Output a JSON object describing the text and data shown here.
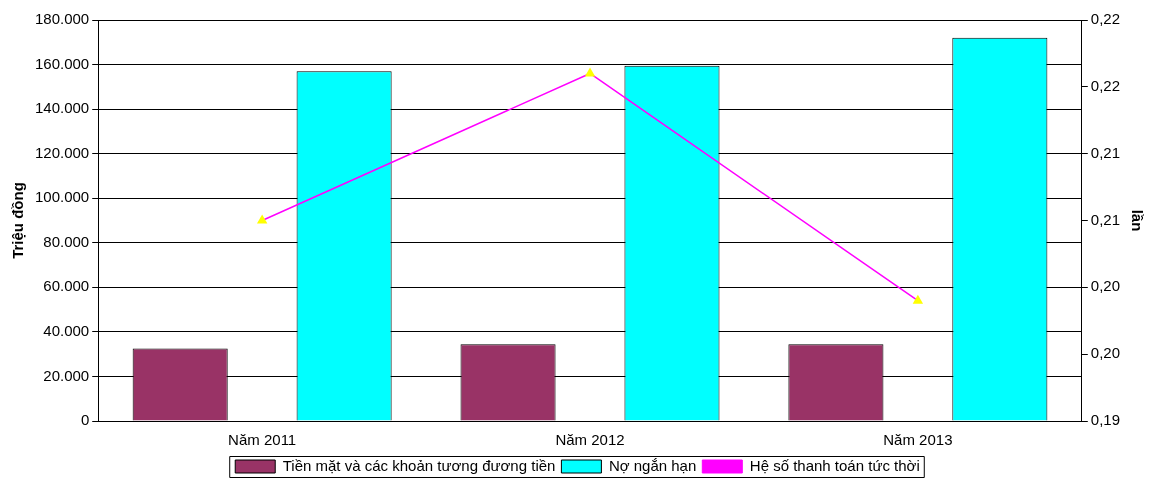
{
  "chart_data": {
    "type": "bar",
    "categories": [
      "Năm 2011",
      "Năm 2012",
      "Năm 2013"
    ],
    "ylabel": "Triệu đồng",
    "y2label": "lần",
    "series": [
      {
        "name": "Tiền mặt và các khoản tương đương tiền",
        "color": "#993366",
        "values": [
          32500,
          34500,
          34500
        ]
      },
      {
        "name": "Nợ ngắn hạn",
        "color": "#00ffff",
        "values": [
          157000,
          159500,
          172000
        ]
      },
      {
        "name": "Hệ số thanh toán tức thời",
        "type": "line",
        "axis": "y2",
        "color": "#ff00ff",
        "marker": "triangle",
        "values": [
          0.205,
          0.216,
          0.199
        ]
      }
    ],
    "ylim": [
      0,
      180000
    ],
    "yticks": [
      {
        "value": 0,
        "label": "0"
      },
      {
        "value": 20000,
        "label": "20.000"
      },
      {
        "value": 40000,
        "label": "40.000"
      },
      {
        "value": 60000,
        "label": "60.000"
      },
      {
        "value": 80000,
        "label": "80.000"
      },
      {
        "value": 100000,
        "label": "100.000"
      },
      {
        "value": 120000,
        "label": "120.000"
      },
      {
        "value": 140000,
        "label": "140.000"
      },
      {
        "value": 160000,
        "label": "160.000"
      },
      {
        "value": 180000,
        "label": "180.000"
      }
    ],
    "y2lim": [
      0.19,
      0.22
    ],
    "y2ticks": [
      {
        "value": 0.19,
        "label": "0,19"
      },
      {
        "value": 0.195,
        "label": "0,20"
      },
      {
        "value": 0.2,
        "label": "0,20"
      },
      {
        "value": 0.205,
        "label": "0,21"
      },
      {
        "value": 0.21,
        "label": "0,21"
      },
      {
        "value": 0.215,
        "label": "0,22"
      },
      {
        "value": 0.22,
        "label": "0,22"
      }
    ],
    "grid": "y",
    "legend": "bottom"
  }
}
